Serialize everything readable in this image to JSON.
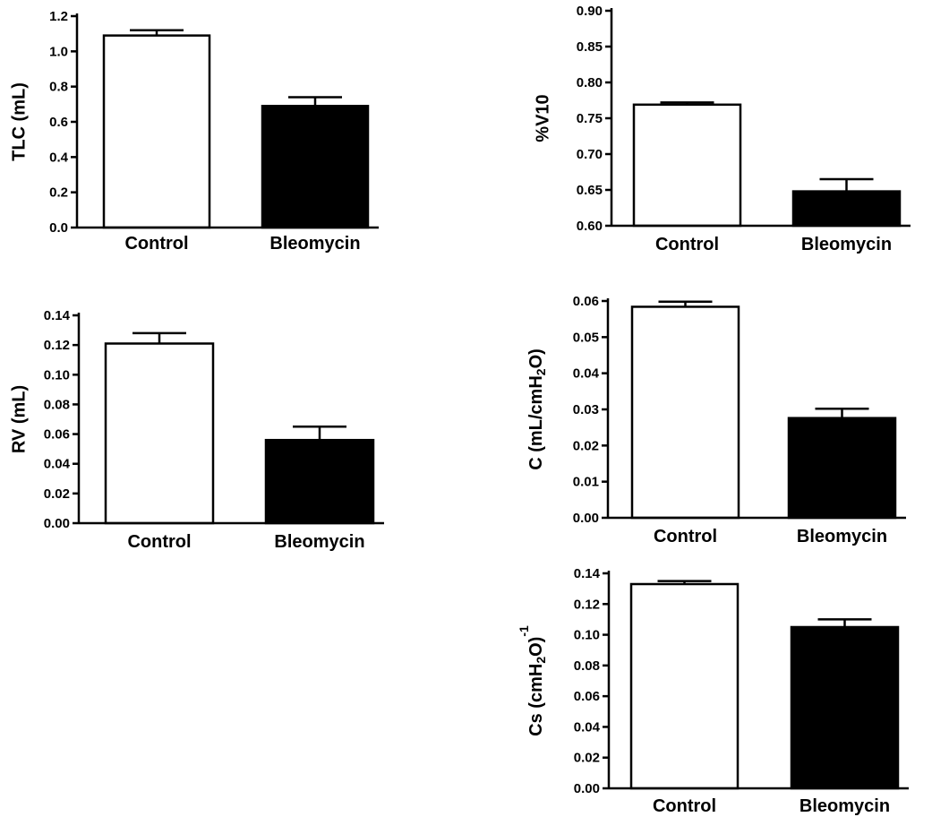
{
  "chart_data": [
    {
      "id": "tlc",
      "type": "bar",
      "ylabel": "TLC (mL)",
      "categories": [
        "Control",
        "Bleomycin"
      ],
      "values": [
        1.09,
        0.69
      ],
      "errors": [
        0.03,
        0.05
      ],
      "bar_colors": [
        "#ffffff",
        "#000000"
      ],
      "ylim": [
        0.0,
        1.2
      ],
      "yticks": [
        0.0,
        0.2,
        0.4,
        0.6,
        0.8,
        1.0,
        1.2
      ],
      "ytick_labels": [
        "0.0",
        "0.2",
        "0.4",
        "0.6",
        "0.8",
        "1.0",
        "1.2"
      ]
    },
    {
      "id": "v10",
      "type": "bar",
      "ylabel": "%V10",
      "categories": [
        "Control",
        "Bleomycin"
      ],
      "values": [
        0.769,
        0.648
      ],
      "errors": [
        0.003,
        0.017
      ],
      "bar_colors": [
        "#ffffff",
        "#000000"
      ],
      "ylim": [
        0.6,
        0.9
      ],
      "yticks": [
        0.6,
        0.65,
        0.7,
        0.75,
        0.8,
        0.85,
        0.9
      ],
      "ytick_labels": [
        "0.60",
        "0.65",
        "0.70",
        "0.75",
        "0.80",
        "0.85",
        "0.90"
      ]
    },
    {
      "id": "rv",
      "type": "bar",
      "ylabel": "RV (mL)",
      "categories": [
        "Control",
        "Bleomycin"
      ],
      "values": [
        0.121,
        0.056
      ],
      "errors": [
        0.007,
        0.009
      ],
      "bar_colors": [
        "#ffffff",
        "#000000"
      ],
      "ylim": [
        0.0,
        0.14
      ],
      "yticks": [
        0.0,
        0.02,
        0.04,
        0.06,
        0.08,
        0.1,
        0.12,
        0.14
      ],
      "ytick_labels": [
        "0.00",
        "0.02",
        "0.04",
        "0.06",
        "0.08",
        "0.10",
        "0.12",
        "0.14"
      ]
    },
    {
      "id": "c",
      "type": "bar",
      "ylabel": {
        "main": "C (mL/cmH",
        "sub": "2",
        "tail": "O)"
      },
      "categories": [
        "Control",
        "Bleomycin"
      ],
      "values": [
        0.0584,
        0.0276
      ],
      "errors": [
        0.0014,
        0.0026
      ],
      "bar_colors": [
        "#ffffff",
        "#000000"
      ],
      "ylim": [
        0.0,
        0.06
      ],
      "yticks": [
        0.0,
        0.01,
        0.02,
        0.03,
        0.04,
        0.05,
        0.06
      ],
      "ytick_labels": [
        "0.00",
        "0.01",
        "0.02",
        "0.03",
        "0.04",
        "0.05",
        "0.06"
      ]
    },
    {
      "id": "cs",
      "type": "bar",
      "ylabel": {
        "main": "Cs (cmH",
        "sub": "2",
        "tail": "O)",
        "sup": "-1"
      },
      "categories": [
        "Control",
        "Bleomycin"
      ],
      "values": [
        0.133,
        0.105
      ],
      "errors": [
        0.002,
        0.005
      ],
      "bar_colors": [
        "#ffffff",
        "#000000"
      ],
      "ylim": [
        0.0,
        0.14
      ],
      "yticks": [
        0.0,
        0.02,
        0.04,
        0.06,
        0.08,
        0.1,
        0.12,
        0.14
      ],
      "ytick_labels": [
        "0.00",
        "0.02",
        "0.04",
        "0.06",
        "0.08",
        "0.10",
        "0.12",
        "0.14"
      ]
    }
  ]
}
